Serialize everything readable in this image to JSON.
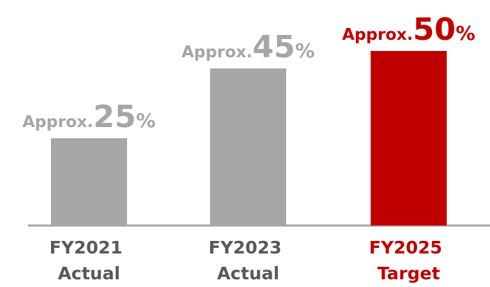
{
  "chart_data": {
    "type": "bar",
    "categories": [
      "FY2021 Actual",
      "FY2023 Actual",
      "FY2025 Target"
    ],
    "values": [
      25,
      45,
      50
    ],
    "value_labels": [
      "Approx.25%",
      "Approx.45%",
      "Approx.50%"
    ],
    "colors": [
      "#a6a6a6",
      "#a6a6a6",
      "#c00000"
    ],
    "ylim": [
      0,
      64
    ]
  }
}
